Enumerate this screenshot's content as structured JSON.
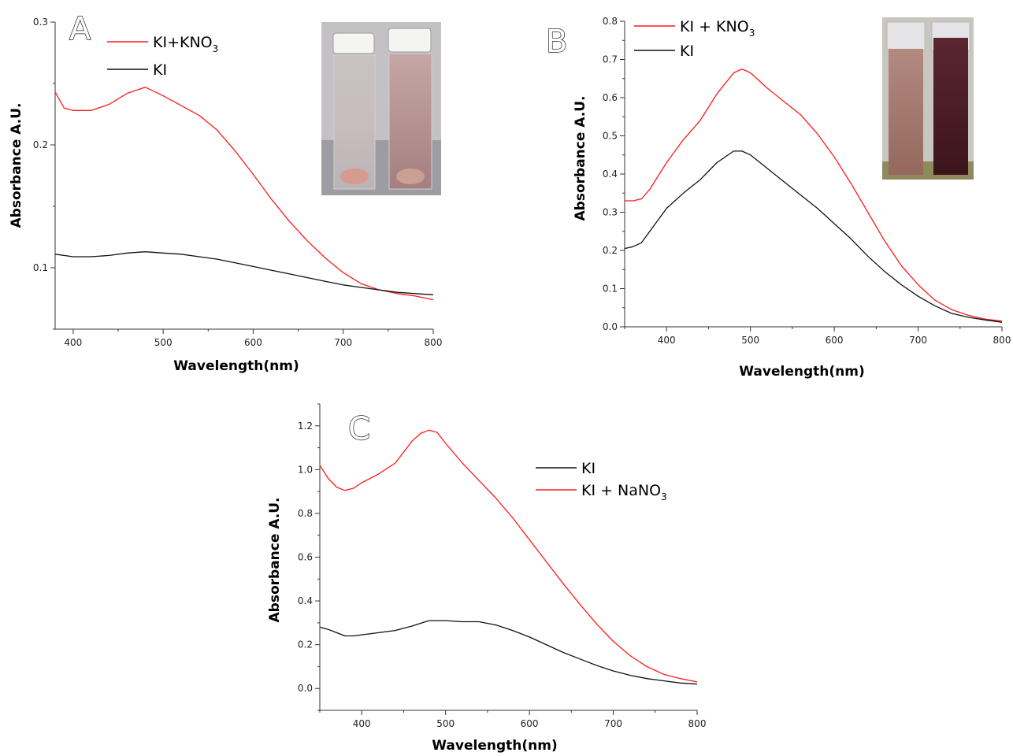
{
  "colors": {
    "red": "#ff1a1a",
    "black": "#111111"
  },
  "chart_data": [
    {
      "id": "A",
      "type": "line",
      "panel_label": "A",
      "xlabel": "Wavelength(nm)",
      "ylabel": "Absorbance A.U.",
      "xlim": [
        380,
        800
      ],
      "ylim": [
        0.05,
        0.3
      ],
      "xticks": [
        400,
        500,
        600,
        700,
        800
      ],
      "yticks": [
        0.1,
        0.2,
        0.3
      ],
      "legend_position": "top-center",
      "inset_photo": "two vials: pale (left) and pink (right)",
      "series": [
        {
          "name": "KI+KNO",
          "name_sub": "3",
          "color": "#ff1a1a",
          "x": [
            380,
            390,
            400,
            420,
            440,
            460,
            480,
            500,
            520,
            540,
            560,
            580,
            600,
            620,
            640,
            660,
            680,
            700,
            720,
            740,
            760,
            780,
            800
          ],
          "y": [
            0.243,
            0.23,
            0.228,
            0.228,
            0.233,
            0.242,
            0.247,
            0.24,
            0.232,
            0.224,
            0.212,
            0.195,
            0.176,
            0.156,
            0.138,
            0.122,
            0.108,
            0.096,
            0.087,
            0.082,
            0.079,
            0.077,
            0.074
          ]
        },
        {
          "name": "KI",
          "name_sub": "",
          "color": "#111111",
          "x": [
            380,
            400,
            420,
            440,
            460,
            480,
            500,
            520,
            540,
            560,
            580,
            600,
            620,
            640,
            660,
            680,
            700,
            720,
            740,
            760,
            780,
            800
          ],
          "y": [
            0.111,
            0.109,
            0.109,
            0.11,
            0.112,
            0.113,
            0.112,
            0.111,
            0.109,
            0.107,
            0.104,
            0.101,
            0.098,
            0.095,
            0.092,
            0.089,
            0.086,
            0.084,
            0.082,
            0.08,
            0.079,
            0.078
          ]
        }
      ]
    },
    {
      "id": "B",
      "type": "line",
      "panel_label": "B",
      "xlabel": "Wavelength(nm)",
      "ylabel": "Absorbance A.U.",
      "xlim": [
        350,
        800
      ],
      "ylim": [
        0.0,
        0.8
      ],
      "xticks": [
        400,
        500,
        600,
        700,
        800
      ],
      "yticks": [
        0.0,
        0.1,
        0.2,
        0.3,
        0.4,
        0.5,
        0.6,
        0.7,
        0.8
      ],
      "legend_position": "top-left",
      "inset_photo": "two cuvettes: pink (left) and dark red (right)",
      "series": [
        {
          "name": "KI + KNO",
          "name_sub": "3",
          "color": "#ff1a1a",
          "x": [
            350,
            360,
            370,
            380,
            400,
            420,
            440,
            460,
            480,
            490,
            500,
            520,
            540,
            560,
            580,
            600,
            620,
            640,
            660,
            680,
            700,
            720,
            740,
            760,
            780,
            800
          ],
          "y": [
            0.33,
            0.33,
            0.335,
            0.36,
            0.43,
            0.49,
            0.54,
            0.61,
            0.665,
            0.675,
            0.665,
            0.625,
            0.59,
            0.555,
            0.505,
            0.445,
            0.375,
            0.3,
            0.225,
            0.16,
            0.11,
            0.07,
            0.045,
            0.03,
            0.02,
            0.015
          ]
        },
        {
          "name": "KI",
          "name_sub": "",
          "color": "#111111",
          "x": [
            350,
            360,
            370,
            380,
            400,
            420,
            440,
            460,
            480,
            490,
            500,
            520,
            540,
            560,
            580,
            600,
            620,
            640,
            660,
            680,
            700,
            720,
            740,
            760,
            780,
            800
          ],
          "y": [
            0.205,
            0.21,
            0.22,
            0.25,
            0.31,
            0.35,
            0.385,
            0.43,
            0.46,
            0.46,
            0.45,
            0.415,
            0.38,
            0.345,
            0.31,
            0.27,
            0.23,
            0.185,
            0.145,
            0.11,
            0.08,
            0.055,
            0.035,
            0.025,
            0.018,
            0.012
          ]
        }
      ]
    },
    {
      "id": "C",
      "type": "line",
      "panel_label": "C",
      "xlabel": "Wavelength(nm)",
      "ylabel": "Absorbance A.U.",
      "xlim": [
        350,
        800
      ],
      "ylim": [
        -0.1,
        1.3
      ],
      "xticks": [
        400,
        500,
        600,
        700,
        800
      ],
      "yticks": [
        0.0,
        0.2,
        0.4,
        0.6,
        0.8,
        1.0,
        1.2
      ],
      "legend_position": "right-center",
      "series": [
        {
          "name": "KI",
          "name_sub": "",
          "color": "#111111",
          "x": [
            350,
            360,
            370,
            380,
            390,
            400,
            420,
            440,
            460,
            480,
            500,
            520,
            540,
            560,
            580,
            600,
            620,
            640,
            660,
            680,
            700,
            720,
            740,
            760,
            780,
            800
          ],
          "y": [
            0.28,
            0.27,
            0.255,
            0.24,
            0.24,
            0.245,
            0.255,
            0.265,
            0.285,
            0.31,
            0.31,
            0.305,
            0.305,
            0.29,
            0.265,
            0.235,
            0.2,
            0.165,
            0.135,
            0.105,
            0.08,
            0.06,
            0.045,
            0.035,
            0.025,
            0.02
          ]
        },
        {
          "name": "KI + NaNO",
          "name_sub": "3",
          "color": "#ff1a1a",
          "x": [
            350,
            360,
            370,
            380,
            390,
            400,
            420,
            440,
            460,
            470,
            480,
            490,
            500,
            520,
            540,
            560,
            580,
            600,
            620,
            640,
            660,
            680,
            700,
            720,
            740,
            760,
            780,
            800
          ],
          "y": [
            1.02,
            0.96,
            0.92,
            0.905,
            0.915,
            0.94,
            0.98,
            1.03,
            1.13,
            1.165,
            1.18,
            1.17,
            1.12,
            1.03,
            0.95,
            0.87,
            0.78,
            0.68,
            0.58,
            0.48,
            0.385,
            0.295,
            0.215,
            0.15,
            0.1,
            0.065,
            0.045,
            0.03
          ]
        }
      ]
    }
  ]
}
